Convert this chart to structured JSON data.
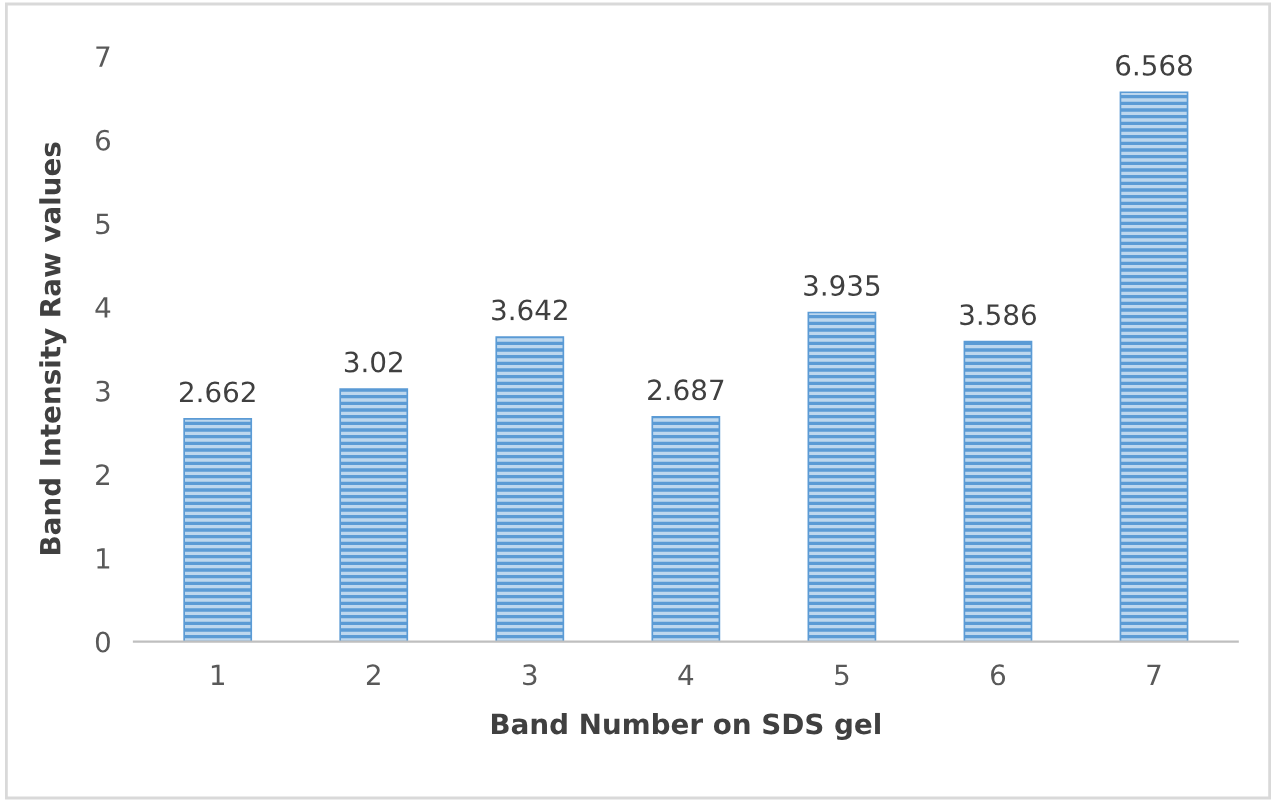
{
  "chart_data": {
    "type": "bar",
    "xlabel": "Band Number on SDS gel",
    "ylabel": "Band Intensity Raw values",
    "categories": [
      "1",
      "2",
      "3",
      "4",
      "5",
      "6",
      "7"
    ],
    "values": [
      2.662,
      3.02,
      3.642,
      2.687,
      3.935,
      3.586,
      6.568
    ],
    "color": "#5b9bd5",
    "ylim": [
      0,
      7
    ],
    "yticks": [
      0,
      1,
      2,
      3,
      4,
      5,
      6,
      7
    ],
    "grid": false,
    "data_labels": true
  }
}
